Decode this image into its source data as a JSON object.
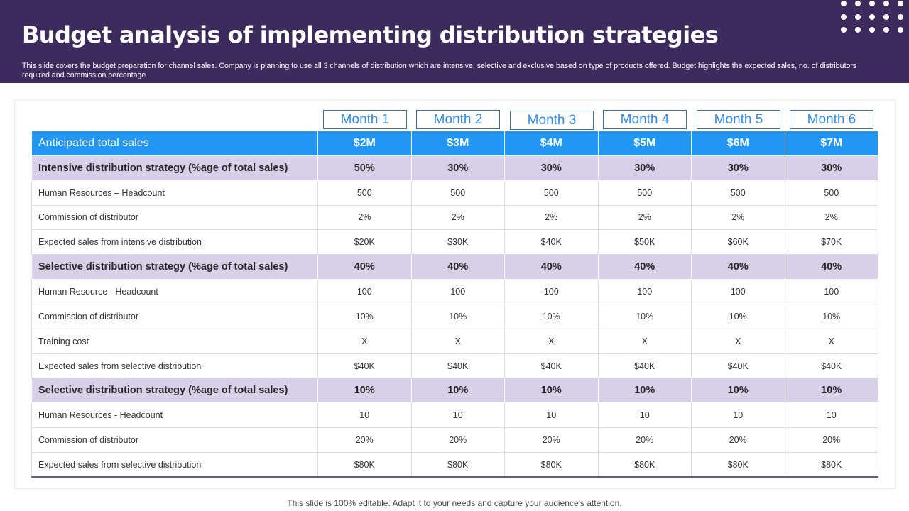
{
  "title": "Budget analysis of implementing distribution strategies",
  "subtitle": "This slide covers the budget preparation for channel sales. Company is planning to use all 3 channels of distribution which are intensive, selective and exclusive based on type  of products offered. Budget highlights the expected sales, no. of distributors required and commission percentage",
  "months": [
    "Month 1",
    "Month 2",
    "Month 3",
    "Month 4",
    "Month 5",
    "Month 6"
  ],
  "table": {
    "header": {
      "label": "Anticipated total sales",
      "values": [
        "$2M",
        "$3M",
        "$4M",
        "$5M",
        "$6M",
        "$7M"
      ]
    },
    "rows": [
      {
        "type": "section",
        "label": "Intensive distribution strategy (%age of total sales)",
        "values": [
          "50%",
          "30%",
          "30%",
          "30%",
          "30%",
          "30%"
        ]
      },
      {
        "type": "data",
        "label": "Human Resources – Headcount",
        "values": [
          "500",
          "500",
          "500",
          "500",
          "500",
          "500"
        ]
      },
      {
        "type": "data",
        "label": "Commission of distributor",
        "values": [
          "2%",
          "2%",
          "2%",
          "2%",
          "2%",
          "2%"
        ]
      },
      {
        "type": "data",
        "label": "Expected sales from  intensive  distribution",
        "values": [
          "$20K",
          "$30K",
          "$40K",
          "$50K",
          "$60K",
          "$70K"
        ]
      },
      {
        "type": "section",
        "label": "Selective  distribution strategy (%age of total sales)",
        "values": [
          "40%",
          "40%",
          "40%",
          "40%",
          "40%",
          "40%"
        ]
      },
      {
        "type": "data",
        "label": "Human Resource  - Headcount",
        "values": [
          "100",
          "100",
          "100",
          "100",
          "100",
          "100"
        ]
      },
      {
        "type": "data",
        "label": "Commission of distributor",
        "values": [
          "10%",
          "10%",
          "10%",
          "10%",
          "10%",
          "10%"
        ]
      },
      {
        "type": "data",
        "label": "Training  cost",
        "values": [
          "X",
          "X",
          "X",
          "X",
          "X",
          "X"
        ]
      },
      {
        "type": "data",
        "label": "Expected sales from  selective  distribution",
        "values": [
          "$40K",
          "$40K",
          "$40K",
          "$40K",
          "$40K",
          "$40K"
        ]
      },
      {
        "type": "section",
        "label": "Selective  distribution strategy (%age of total sales)",
        "values": [
          "10%",
          "10%",
          "10%",
          "10%",
          "10%",
          "10%"
        ]
      },
      {
        "type": "data",
        "label": "Human Resources  - Headcount",
        "values": [
          "10",
          "10",
          "10",
          "10",
          "10",
          "10"
        ]
      },
      {
        "type": "data",
        "label": "Commission of distributor",
        "values": [
          "20%",
          "20%",
          "20%",
          "20%",
          "20%",
          "20%"
        ]
      },
      {
        "type": "data",
        "label": "Expected sales from  selective  distribution",
        "values": [
          "$80K",
          "$80K",
          "$80K",
          "$80K",
          "$80K",
          "$80K"
        ]
      }
    ]
  },
  "footer": "This slide is 100% editable. Adapt it to your needs and capture your audience's attention.",
  "colors": {
    "header_bg": "#3e2b5e",
    "accent_blue": "#2196f3",
    "section_row": "#d8d0e8",
    "month_text": "#2f8be6"
  }
}
